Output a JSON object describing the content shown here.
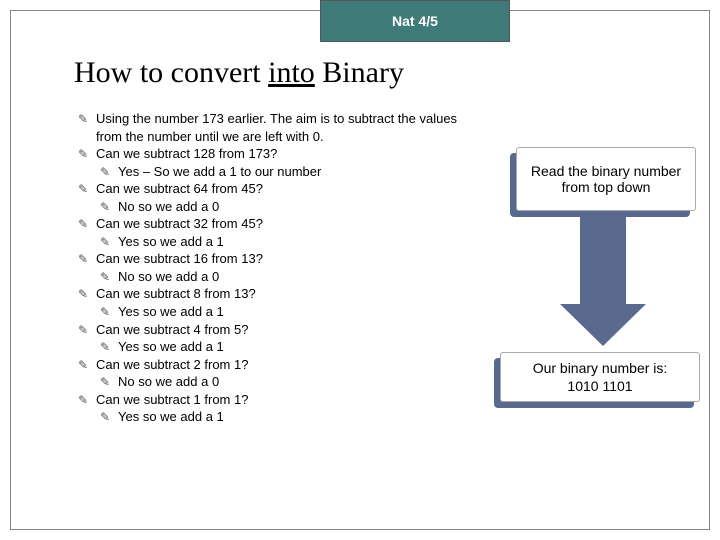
{
  "header": {
    "label": "Nat 4/5"
  },
  "title": {
    "part1": "How to convert ",
    "part2": "into",
    "part3": " Binary"
  },
  "bullets": [
    {
      "level": 0,
      "text": "Using the number 173 earlier. The aim is to subtract the values from the number until we are left with 0."
    },
    {
      "level": 0,
      "text": "Can we subtract 128 from 173?"
    },
    {
      "level": 1,
      "text": "Yes – So we add a 1 to our number"
    },
    {
      "level": 0,
      "text": "Can we subtract 64 from 45?"
    },
    {
      "level": 1,
      "text": "No so we add a 0"
    },
    {
      "level": 0,
      "text": "Can we subtract 32 from 45?"
    },
    {
      "level": 1,
      "text": "Yes so we add a 1"
    },
    {
      "level": 0,
      "text": "Can we subtract 16 from 13?"
    },
    {
      "level": 1,
      "text": "No so we add a 0"
    },
    {
      "level": 0,
      "text": "Can we subtract 8 from 13?"
    },
    {
      "level": 1,
      "text": "Yes so we add a 1"
    },
    {
      "level": 0,
      "text": "Can we subtract 4 from 5?"
    },
    {
      "level": 1,
      "text": "Yes so we add a 1"
    },
    {
      "level": 0,
      "text": "Can we subtract 2 from 1?"
    },
    {
      "level": 1,
      "text": "No so we add a 0"
    },
    {
      "level": 0,
      "text": "Can we subtract 1 from 1?"
    },
    {
      "level": 1,
      "text": "Yes so we add a 1"
    }
  ],
  "callouts": {
    "top": "Read the binary number from top down",
    "bottom_line1": "Our binary number is:",
    "bottom_line2": "1010 1101"
  },
  "colors": {
    "header_bg": "#3f7b79",
    "accent": "#596a8e",
    "text": "#000000",
    "frame": "#888888"
  }
}
